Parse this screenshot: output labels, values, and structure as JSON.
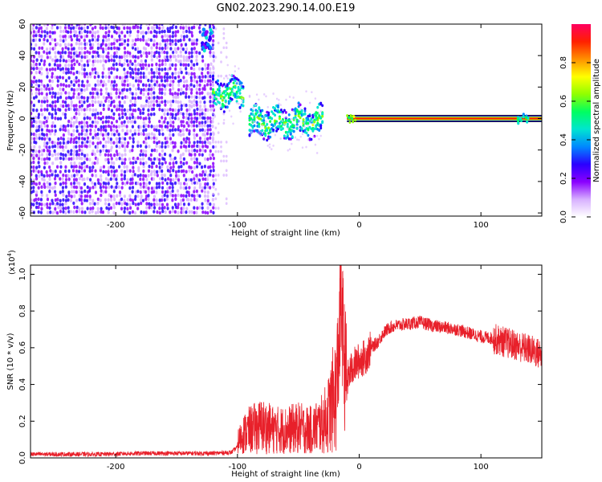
{
  "title": "GN02.2023.290.14.00.E19",
  "chart_data": [
    {
      "type": "heatmap",
      "xlabel": "Height of straight line (km)",
      "ylabel": "Frequency (Hz)",
      "xlim": [
        -270,
        150
      ],
      "ylim": [
        -62,
        60
      ],
      "x_ticks": [
        -200,
        -100,
        0,
        100
      ],
      "y_ticks": [
        -60,
        -40,
        -20,
        0,
        20,
        40,
        60
      ],
      "colorbar": {
        "label": "Normalized spectral amplitude",
        "range": [
          0,
          1
        ],
        "ticks": [
          0.0,
          0.2,
          0.4,
          0.6,
          0.8
        ],
        "colors": [
          "#ffffff",
          "#d7b0ff",
          "#8a00ff",
          "#2a00ff",
          "#0088ff",
          "#00e5d0",
          "#00ff60",
          "#90ff00",
          "#ffff00",
          "#ff9000",
          "#ff2000",
          "#ff0060"
        ]
      },
      "features": [
        {
          "region": "broadband noise",
          "x_range": [
            -270,
            -120
          ],
          "y_range": [
            -60,
            60
          ],
          "amplitude": 0.15
        },
        {
          "region": "blob near top",
          "x": -125,
          "y": 50,
          "amplitude": 0.3
        },
        {
          "region": "signal band",
          "x_range": [
            -120,
            -95
          ],
          "y_center": 16,
          "amplitude": 0.45
        },
        {
          "region": "signal band",
          "x_range": [
            -90,
            -30
          ],
          "y_center": -2,
          "amplitude": 0.45
        },
        {
          "region": "carrier line",
          "x_range": [
            -10,
            150
          ],
          "y_center": 0,
          "amplitude": 0.95
        }
      ]
    },
    {
      "type": "line",
      "xlabel": "Height of straight line (km)",
      "ylabel": "SNR (10 * v/v)",
      "y_scale_label": "(x10",
      "y_scale_exp": "4",
      "y_scale_close": ")",
      "xlim": [
        -270,
        150
      ],
      "ylim": [
        0,
        1.05
      ],
      "x_ticks": [
        -200,
        -100,
        0,
        100
      ],
      "y_ticks": [
        0.0,
        0.2,
        0.4,
        0.6,
        0.8,
        1.0
      ],
      "color": "#e8202a",
      "series": [
        {
          "x": [
            -270,
            -240,
            -210,
            -180,
            -150,
            -120,
            -105,
            -100,
            -95,
            -90,
            -80,
            -70,
            -60,
            -50,
            -40,
            -30,
            -25,
            -20,
            -18,
            -16,
            -15,
            -13,
            -12,
            -10,
            -8,
            -5,
            0,
            5,
            10,
            15,
            20,
            25,
            30,
            40,
            50,
            60,
            70,
            80,
            90,
            100,
            110,
            120,
            130,
            140,
            150
          ],
          "y": [
            0.02,
            0.02,
            0.02,
            0.025,
            0.025,
            0.025,
            0.03,
            0.06,
            0.1,
            0.12,
            0.14,
            0.12,
            0.12,
            0.13,
            0.12,
            0.15,
            0.2,
            0.3,
            0.45,
            0.7,
            0.85,
            0.65,
            0.5,
            0.42,
            0.46,
            0.5,
            0.53,
            0.55,
            0.6,
            0.63,
            0.68,
            0.71,
            0.72,
            0.73,
            0.74,
            0.72,
            0.71,
            0.7,
            0.68,
            0.66,
            0.65,
            0.63,
            0.61,
            0.59,
            0.56
          ]
        }
      ]
    }
  ]
}
